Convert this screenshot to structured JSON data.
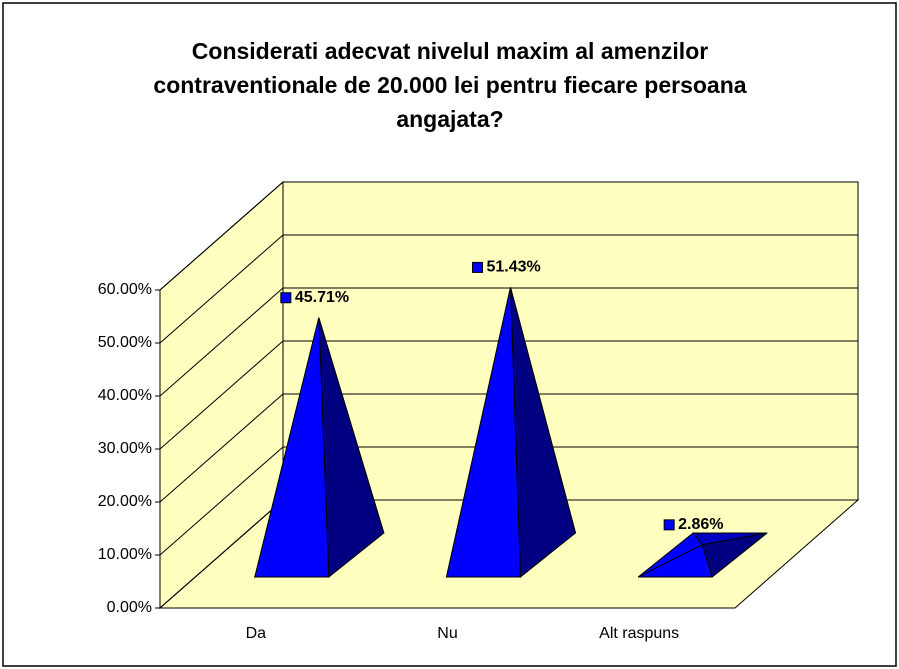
{
  "chart_data": {
    "type": "pyramid3d",
    "title": "Considerati adecvat nivelul maxim al amenzilor contraventionale de 20.000 lei pentru fiecare persoana angajata?",
    "categories": [
      "Da",
      "Nu",
      "Alt raspuns"
    ],
    "values": [
      45.71,
      51.43,
      2.86
    ],
    "value_labels": [
      "45.71%",
      "51.43%",
      "2.86%"
    ],
    "color": "#0000ff",
    "ylim": [
      0,
      60
    ],
    "yticks": [
      {
        "value": 0,
        "label": "0.00%"
      },
      {
        "value": 10,
        "label": "10.00%"
      },
      {
        "value": 20,
        "label": "20.00%"
      },
      {
        "value": 30,
        "label": "30.00%"
      },
      {
        "value": 40,
        "label": "40.00%"
      },
      {
        "value": 50,
        "label": "50.00%"
      },
      {
        "value": 60,
        "label": "60.00%"
      }
    ],
    "grid": true
  }
}
